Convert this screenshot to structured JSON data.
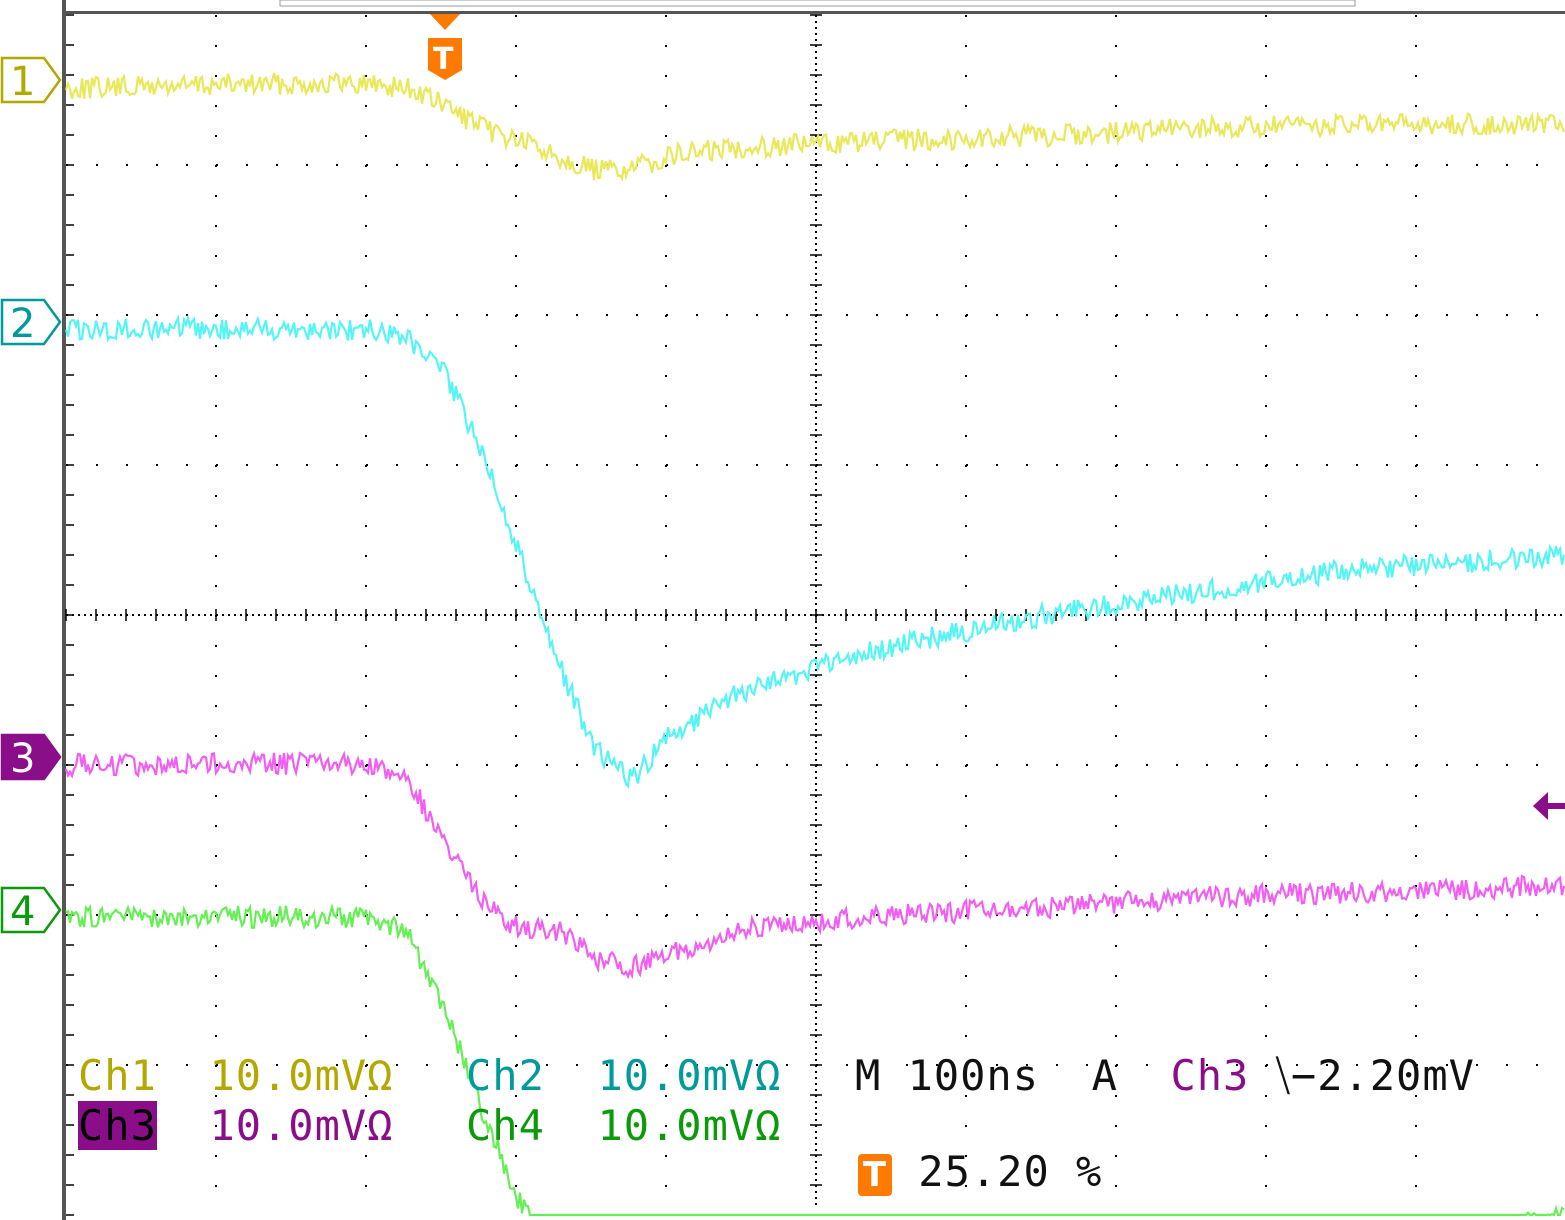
{
  "channels": [
    {
      "id": "ch1",
      "marker": "1",
      "color": "#e8e85a",
      "label_color": "#b3a800",
      "name": "Ch1",
      "scale": "10.0mVΩ"
    },
    {
      "id": "ch2",
      "marker": "2",
      "color": "#55f5f5",
      "label_color": "#009a9a",
      "name": "Ch2",
      "scale": "10.0mVΩ"
    },
    {
      "id": "ch3",
      "marker": "3",
      "color": "#f25ef2",
      "label_color": "#8a0d8a",
      "name": "Ch3",
      "scale": "10.0mVΩ"
    },
    {
      "id": "ch4",
      "marker": "4",
      "color": "#66ef55",
      "label_color": "#0a9a0a",
      "name": "Ch4",
      "scale": "10.0mVΩ"
    }
  ],
  "timebase": {
    "label": "M 100ns"
  },
  "trigger": {
    "mode": "A",
    "source": "Ch3",
    "slope_symbol": "⧹",
    "level": "−2.20mV",
    "marker": "T",
    "position": "25.20 %",
    "marker_color": "#ff7a00"
  },
  "grid": {
    "color": "#000000",
    "divisions_x": 10,
    "divisions_y": 8
  },
  "chart_data": {
    "type": "line",
    "title": "",
    "xlabel": "",
    "ylabel": "",
    "x_unit": "ns",
    "y_unit": "mV",
    "x": [
      -250,
      -100,
      -50,
      -25,
      0,
      25,
      50,
      75,
      100,
      125,
      150,
      200,
      300,
      400,
      500,
      600,
      750
    ],
    "series": [
      {
        "name": "Ch1",
        "values": [
          0,
          0.3,
          0.3,
          0,
          -1.2,
          -2.7,
          -3.5,
          -4.5,
          -5.5,
          -5.4,
          -4.5,
          -3.9,
          -3.5,
          -3.2,
          -2.7,
          -2.5,
          -2.4
        ]
      },
      {
        "name": "Ch2",
        "values": [
          0,
          0.1,
          0,
          -0.5,
          -3,
          -8,
          -15,
          -22,
          -28,
          -30,
          -27,
          -24,
          -21,
          -19,
          -17.5,
          -16,
          -15
        ]
      },
      {
        "name": "Ch3",
        "values": [
          0,
          0.1,
          0,
          -1,
          -5,
          -9,
          -11,
          -11,
          -13,
          -13.5,
          -12.5,
          -11,
          -10,
          -9.5,
          -8.8,
          -8.5,
          -8
        ]
      },
      {
        "name": "Ch4",
        "values": [
          0,
          0.1,
          0,
          -1,
          -6,
          -13,
          -19,
          -22,
          -21,
          -23,
          -24,
          -25,
          -24.5,
          -24,
          -22,
          -21.5,
          -20
        ]
      }
    ]
  }
}
